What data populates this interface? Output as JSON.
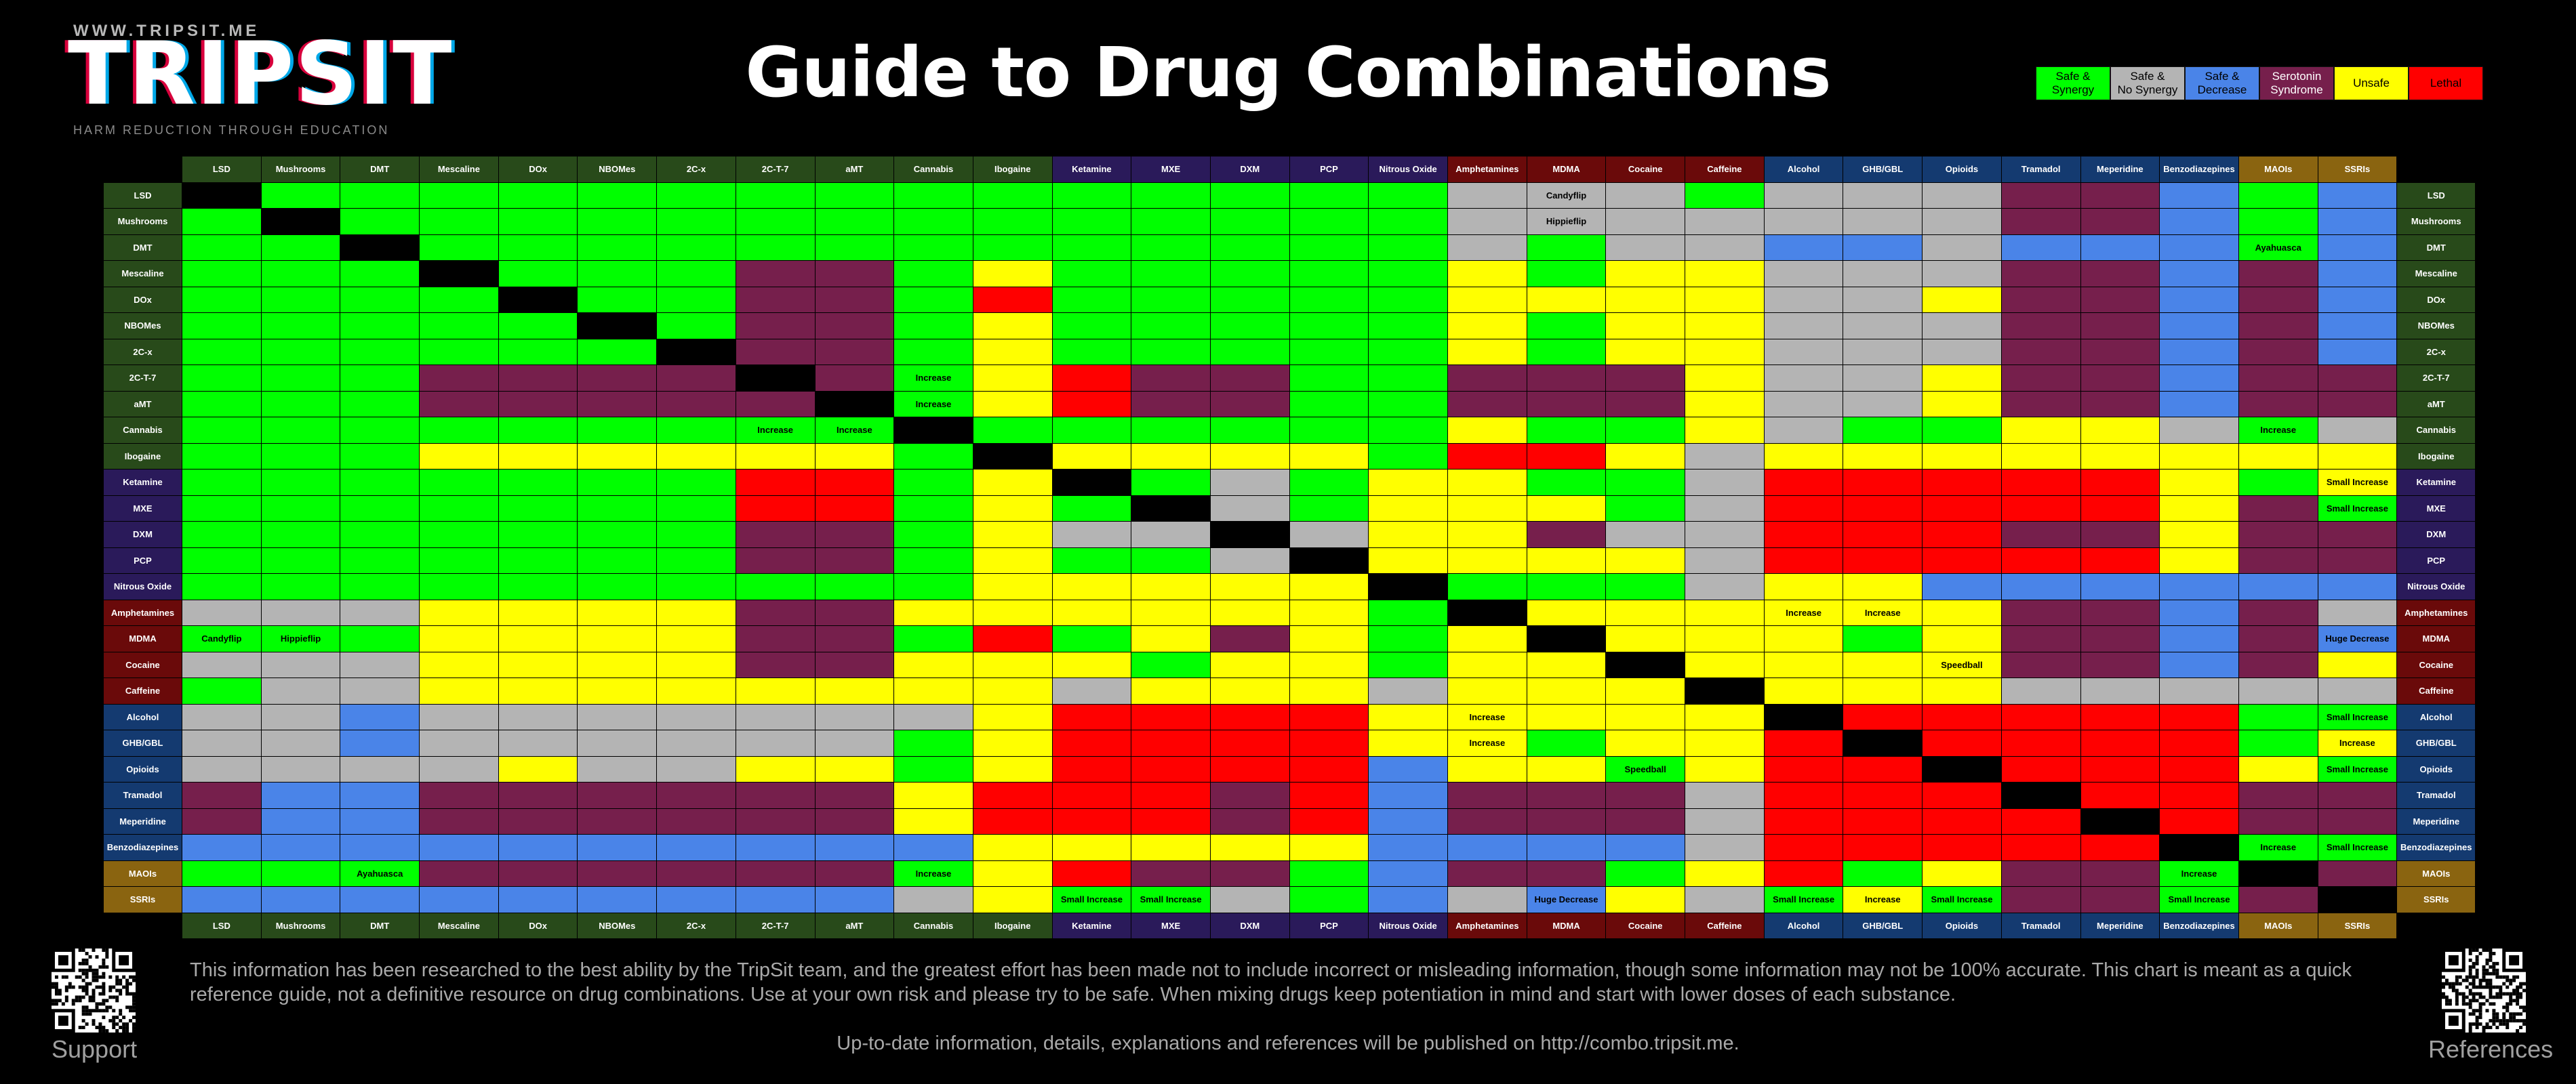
{
  "brand": {
    "url": "WWW.TRIPSIT.ME",
    "logo": "TRIPSIT",
    "tagline": "HARM REDUCTION THROUGH EDUCATION"
  },
  "title": "Guide to Drug Combinations",
  "colors": {
    "safe_synergy": "#00ff00",
    "safe_no_synergy": "#b4b4b4",
    "safe_decrease": "#4a84e8",
    "serotonin": "#761f4c",
    "unsafe": "#ffff00",
    "lethal": "#ff0000",
    "self": "#000000"
  },
  "legend": [
    {
      "label": "Safe &\nSynergy",
      "color": "#00ff00"
    },
    {
      "label": "Safe &\nNo Synergy",
      "color": "#b4b4b4"
    },
    {
      "label": "Safe &\nDecrease",
      "color": "#4a84e8"
    },
    {
      "label": "Serotonin\nSyndrome",
      "color": "#761f4c"
    },
    {
      "label": "Unsafe",
      "color": "#ffff00"
    },
    {
      "label": "Lethal",
      "color": "#ff0000"
    }
  ],
  "drugs": [
    {
      "name": "LSD",
      "color": "#284a1a"
    },
    {
      "name": "Mushrooms",
      "color": "#284a1a"
    },
    {
      "name": "DMT",
      "color": "#284a1a"
    },
    {
      "name": "Mescaline",
      "color": "#284a1a"
    },
    {
      "name": "DOx",
      "color": "#284a1a"
    },
    {
      "name": "NBOMes",
      "color": "#284a1a"
    },
    {
      "name": "2C-x",
      "color": "#284a1a"
    },
    {
      "name": "2C-T-7",
      "color": "#284a1a"
    },
    {
      "name": "aMT",
      "color": "#284a1a"
    },
    {
      "name": "Cannabis",
      "color": "#284a1a"
    },
    {
      "name": "Ibogaine",
      "color": "#284a1a"
    },
    {
      "name": "Ketamine",
      "color": "#2a1a5a"
    },
    {
      "name": "MXE",
      "color": "#2a1a5a"
    },
    {
      "name": "DXM",
      "color": "#2a1a5a"
    },
    {
      "name": "PCP",
      "color": "#2a1a5a"
    },
    {
      "name": "Nitrous Oxide",
      "color": "#2a1a5a"
    },
    {
      "name": "Amphetamines",
      "color": "#6a0a0a"
    },
    {
      "name": "MDMA",
      "color": "#6a0a0a"
    },
    {
      "name": "Cocaine",
      "color": "#6a0a0a"
    },
    {
      "name": "Caffeine",
      "color": "#6a0a0a"
    },
    {
      "name": "Alcohol",
      "color": "#143a70"
    },
    {
      "name": "GHB/GBL",
      "color": "#143a70"
    },
    {
      "name": "Opioids",
      "color": "#143a70"
    },
    {
      "name": "Tramadol",
      "color": "#143a70"
    },
    {
      "name": "Meperidine",
      "color": "#143a70"
    },
    {
      "name": "Benzodiazepines",
      "color": "#143a70"
    },
    {
      "name": "MAOIs",
      "color": "#8a6410"
    },
    {
      "name": "SSRIs",
      "color": "#8a6410"
    }
  ],
  "matrix": [
    "XGGGGGGGGGGGGGGGWWWGWWWSSBGB",
    "GXGGGGGGGGGGGGGGWWWWWWWSSBGB",
    "GGXGGGGGGGGGGGGGWGWWBBWBBBGB",
    "GGGXGGGSSGUGGGGGUGUUWWWSSBSB",
    "GGGGXGGSSGRGGGGGUUUUWWUSSBSB",
    "GGGGGXGSSGUGGGGGUGUUWWWSSBSB",
    "GGGGGGXSSGUGGGGGUGUUWWWSSBSB",
    "GGGSSSSXSGURSSGGSSSUWWUSSBSS",
    "GGGSSSSSXGURSSGGSSSUWWUSSBSS",
    "GGGGGGGGGXGGGGGGUGGUWGGUUWGW",
    "GGGUUUUUUGXUUUUGRRUWUUUUUUUU",
    "GGGGGGGRRGUXGWGUUGGWRRRRRUGU",
    "GGGGGGGRRGUGXWGUUUGWRRRRRUSG",
    "GGGGGGGSSGUWWXWUUSWWRRRSSUSS",
    "GGGGGGGSSGUGGWXUUUUWRRRRRUSS",
    "GGGGGGGGGGUUUUUXGGGWUUBBBBBB",
    "WWWUUUUSSUUUUUUGXUUUUUUSSBSW",
    "GGGUUUUSSGRGUSUGUXUUUGUSSBSB",
    "WWWUUUUSSUUUGUUGUUXUUUUSSBSU",
    "GWWUUUUUUUUWUUUWUUUXUUUWWWWW",
    "WWBWWWWWWWURRRRUUUUUXRRRRRGG",
    "WWBWWWWWWGURRRRUUGUURXRRRRGU",
    "WWWWUWWUUGURRRRBUUGURRXRRRUG",
    "SBBSSSSSSURRRSRBSSSWRRRXRRSS",
    "SBBSSSSSSURRRSRBSSSWRRRRXRSS",
    "BBBBBBBBBBUUUUUBBBBWRRRRRXGG",
    "GGGSSSSSSGURSSGBSSGURGUSSGXS",
    "BBBBBBBBBWUGGWGBWBUWGUGSSGSX"
  ],
  "annotations": [
    {
      "r": 0,
      "c": 17,
      "text": "Candyflip"
    },
    {
      "r": 1,
      "c": 17,
      "text": "Hippieflip"
    },
    {
      "r": 2,
      "c": 26,
      "text": "Ayahuasca"
    },
    {
      "r": 7,
      "c": 9,
      "text": "Increase"
    },
    {
      "r": 8,
      "c": 9,
      "text": "Increase"
    },
    {
      "r": 9,
      "c": 7,
      "text": "Increase"
    },
    {
      "r": 9,
      "c": 8,
      "text": "Increase"
    },
    {
      "r": 9,
      "c": 26,
      "text": "Increase"
    },
    {
      "r": 11,
      "c": 27,
      "text": "Small Increase"
    },
    {
      "r": 12,
      "c": 27,
      "text": "Small Increase"
    },
    {
      "r": 16,
      "c": 20,
      "text": "Increase"
    },
    {
      "r": 16,
      "c": 21,
      "text": "Increase"
    },
    {
      "r": 17,
      "c": 0,
      "text": "Candyflip"
    },
    {
      "r": 17,
      "c": 1,
      "text": "Hippieflip"
    },
    {
      "r": 17,
      "c": 27,
      "text": "Huge Decrease"
    },
    {
      "r": 18,
      "c": 22,
      "text": "Speedball"
    },
    {
      "r": 20,
      "c": 16,
      "text": "Increase"
    },
    {
      "r": 20,
      "c": 27,
      "text": "Small Increase"
    },
    {
      "r": 21,
      "c": 16,
      "text": "Increase"
    },
    {
      "r": 21,
      "c": 27,
      "text": "Increase"
    },
    {
      "r": 22,
      "c": 18,
      "text": "Speedball"
    },
    {
      "r": 22,
      "c": 27,
      "text": "Small Increase"
    },
    {
      "r": 25,
      "c": 26,
      "text": "Increase"
    },
    {
      "r": 25,
      "c": 27,
      "text": "Small Increase"
    },
    {
      "r": 26,
      "c": 2,
      "text": "Ayahuasca"
    },
    {
      "r": 26,
      "c": 9,
      "text": "Increase"
    },
    {
      "r": 26,
      "c": 25,
      "text": "Increase"
    },
    {
      "r": 27,
      "c": 11,
      "text": "Small Increase"
    },
    {
      "r": 27,
      "c": 12,
      "text": "Small Increase"
    },
    {
      "r": 27,
      "c": 17,
      "text": "Huge Decrease"
    },
    {
      "r": 27,
      "c": 20,
      "text": "Small Increase"
    },
    {
      "r": 27,
      "c": 21,
      "text": "Increase"
    },
    {
      "r": 27,
      "c": 22,
      "text": "Small Increase"
    },
    {
      "r": 27,
      "c": 25,
      "text": "Small Increase"
    }
  ],
  "footer": {
    "disclaimer": "This information has been researched to the best ability by the TripSit team, and the greatest effort has been made not to include incorrect or misleading information, though some information may not be 100% accurate. This chart is meant as a quick reference guide, not a definitive resource on drug combinations. Use at your own risk and please try to be safe. When mixing drugs keep potentiation in mind and start with lower doses of each substance.",
    "url_line": "Up-to-date information, details, explanations and references will be published on http://combo.tripsit.me.",
    "support_label": "Support",
    "references_label": "References"
  }
}
